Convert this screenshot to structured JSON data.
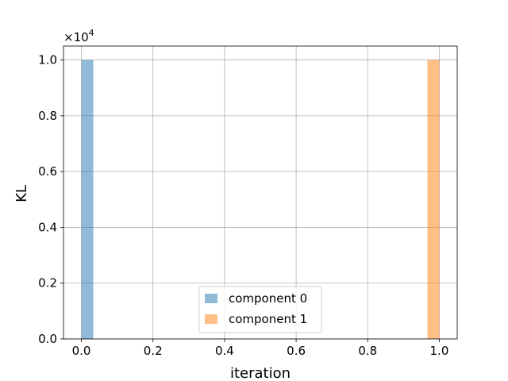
{
  "chart_data": {
    "type": "bar",
    "title": "",
    "xlabel": "iteration",
    "ylabel": "KL",
    "y_scale_factor_label": "×10",
    "y_scale_exponent": "4",
    "y_multiplier": 10000,
    "xlim": [
      -0.05,
      1.05
    ],
    "ylim": [
      0,
      1.05
    ],
    "grid": true,
    "legend_position": "lower-center",
    "x_ticks": [
      "0.0",
      "0.2",
      "0.4",
      "0.6",
      "0.8",
      "1.0"
    ],
    "x_tick_values": [
      0.0,
      0.2,
      0.4,
      0.6,
      0.8,
      1.0
    ],
    "y_ticks": [
      "0.0",
      "0.2",
      "0.4",
      "0.6",
      "0.8",
      "1.0"
    ],
    "y_tick_values": [
      0.0,
      0.2,
      0.4,
      0.6,
      0.8,
      1.0
    ],
    "series": [
      {
        "name": "component 0",
        "color": "#1f77b4",
        "alpha": 0.5,
        "bars": [
          {
            "x0": 0.0,
            "x1": 0.0333,
            "value": 1.0
          }
        ]
      },
      {
        "name": "component 1",
        "color": "#ff7f0e",
        "alpha": 0.5,
        "bars": [
          {
            "x0": 0.9667,
            "x1": 1.0,
            "value": 1.0
          }
        ]
      }
    ]
  }
}
